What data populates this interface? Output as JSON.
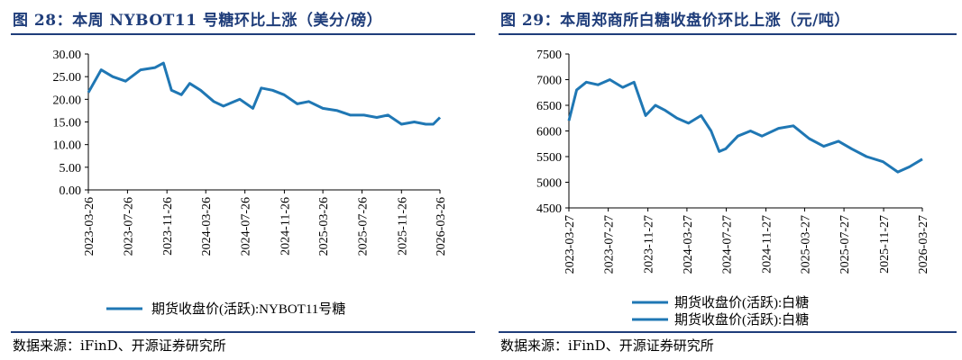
{
  "charts": [
    {
      "title": "图 28：本周 NYBOT11 号糖环比上涨（美分/磅）",
      "source": "数据来源：iFinD、开源证券研究所",
      "colors": {
        "series": "#1f77b4",
        "title": "#1f3d7a"
      },
      "chart_data": {
        "type": "line",
        "xlabel": "",
        "ylabel": "",
        "ylim": [
          0,
          30
        ],
        "yticks": [
          "0.00",
          "5.00",
          "10.00",
          "15.00",
          "20.00",
          "25.00",
          "30.00"
        ],
        "xticks": [
          "2023-03-26",
          "2023-07-26",
          "2023-11-26",
          "2024-03-26",
          "2024-07-26",
          "2024-11-26",
          "2025-03-26",
          "2025-07-26",
          "2025-11-26",
          "2026-03-26"
        ],
        "legend": {
          "position": "bottom"
        },
        "series": [
          {
            "name": "期货收盘价(活跃):NYBOT11号糖",
            "x": [
              "2023-03-26",
              "2023-05-05",
              "2023-06-10",
              "2023-07-20",
              "2023-09-05",
              "2023-10-20",
              "2023-11-15",
              "2023-12-10",
              "2024-01-10",
              "2024-02-05",
              "2024-03-10",
              "2024-04-20",
              "2024-05-20",
              "2024-07-10",
              "2024-08-20",
              "2024-09-15",
              "2024-10-20",
              "2024-11-25",
              "2025-01-05",
              "2025-02-10",
              "2025-03-26",
              "2025-05-10",
              "2025-06-20",
              "2025-08-01",
              "2025-09-10",
              "2025-10-15",
              "2025-11-26",
              "2026-01-05",
              "2026-02-10",
              "2026-03-05",
              "2026-03-26"
            ],
            "values": [
              21.5,
              26.5,
              25.0,
              24.0,
              26.5,
              27.0,
              28.0,
              22.0,
              21.0,
              23.5,
              22.0,
              19.5,
              18.5,
              20.0,
              18.0,
              22.5,
              22.0,
              21.0,
              19.0,
              19.5,
              18.0,
              17.5,
              16.5,
              16.5,
              16.0,
              16.5,
              14.5,
              15.0,
              14.5,
              14.5,
              16.0
            ]
          }
        ]
      }
    },
    {
      "title": "图 29：本周郑商所白糖收盘价环比上涨（元/吨）",
      "source": "数据来源：iFinD、开源证券研究所",
      "colors": {
        "series": "#1f77b4",
        "title": "#1f3d7a"
      },
      "chart_data": {
        "type": "line",
        "xlabel": "",
        "ylabel": "",
        "ylim": [
          4500,
          7500
        ],
        "yticks": [
          "4500",
          "5000",
          "5500",
          "6000",
          "6500",
          "7000",
          "7500"
        ],
        "xticks": [
          "2023-03-27",
          "2023-07-27",
          "2023-11-27",
          "2024-03-27",
          "2024-07-27",
          "2024-11-27",
          "2025-03-27",
          "2025-07-27",
          "2025-11-27",
          "2026-03-27"
        ],
        "legend": {
          "position": "bottom"
        },
        "series": [
          {
            "name": "期货收盘价(活跃):白糖",
            "x": [
              "2023-03-27",
              "2023-04-20",
              "2023-05-20",
              "2023-06-25",
              "2023-08-01",
              "2023-09-10",
              "2023-10-15",
              "2023-11-20",
              "2023-12-20",
              "2024-01-20",
              "2024-02-25",
              "2024-04-01",
              "2024-05-10",
              "2024-06-10",
              "2024-07-05",
              "2024-07-25",
              "2024-09-01",
              "2024-10-10",
              "2024-11-15",
              "2025-01-05",
              "2025-02-20",
              "2025-04-10",
              "2025-05-25",
              "2025-07-10",
              "2025-08-20",
              "2025-10-05",
              "2025-11-25",
              "2026-01-10",
              "2026-02-15",
              "2026-03-27"
            ],
            "values": [
              6200,
              6800,
              6950,
              6900,
              7000,
              6850,
              6950,
              6300,
              6500,
              6400,
              6250,
              6150,
              6300,
              6000,
              5600,
              5650,
              5900,
              6000,
              5900,
              6050,
              6100,
              5850,
              5700,
              5800,
              5650,
              5500,
              5400,
              5200,
              5300,
              5450
            ]
          },
          {
            "name": "期货收盘价(活跃):白糖",
            "x": [],
            "values": []
          }
        ]
      }
    }
  ]
}
